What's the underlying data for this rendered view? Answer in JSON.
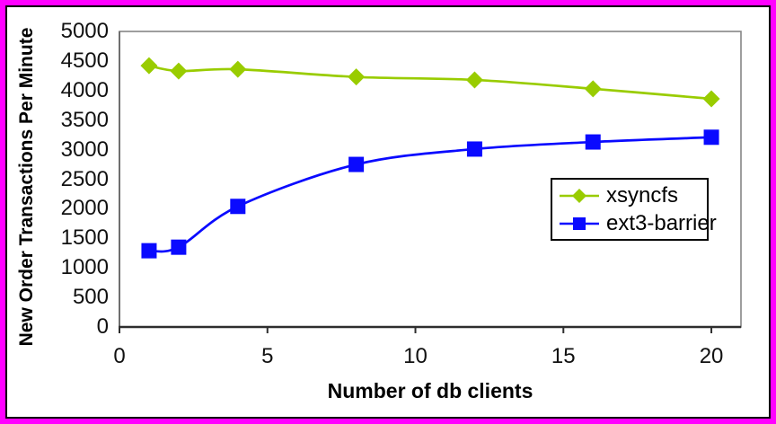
{
  "frame": {
    "outer_border_color": "#ff00ff",
    "inner_border_color": "#000000",
    "background": "#ffffff"
  },
  "chart_data": {
    "type": "line",
    "title": "",
    "xlabel": "Number of db clients",
    "ylabel": "New Order Transactions Per Minute",
    "x": [
      1,
      2,
      4,
      8,
      12,
      16,
      20
    ],
    "series": [
      {
        "name": "xsyncfs",
        "color": "#99cc00",
        "marker": "diamond",
        "values": [
          4420,
          4330,
          4360,
          4230,
          4180,
          4030,
          3860
        ]
      },
      {
        "name": "ext3-barrier",
        "color": "#0a0aff",
        "marker": "square",
        "values": [
          1290,
          1350,
          2040,
          2750,
          3010,
          3130,
          3210
        ]
      }
    ],
    "xlim": [
      0,
      21
    ],
    "ylim": [
      0,
      5000
    ],
    "x_ticks": [
      0,
      5,
      10,
      15,
      20
    ],
    "y_ticks": [
      0,
      500,
      1000,
      1500,
      2000,
      2500,
      3000,
      3500,
      4000,
      4500,
      5000
    ],
    "grid": false,
    "legend_position": "inside-right-middle",
    "axis_color": "#2e2e2e",
    "plot_border_color": "#868686"
  }
}
